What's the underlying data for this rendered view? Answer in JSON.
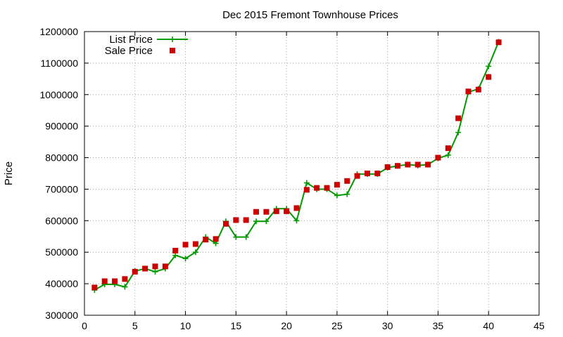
{
  "chart_data": {
    "type": "line",
    "title": "Dec 2015 Fremont Townhouse Prices",
    "xlabel": "",
    "ylabel": "Price",
    "xlim": [
      0,
      45
    ],
    "ylim": [
      300000,
      1200000
    ],
    "xticks": [
      0,
      5,
      10,
      15,
      20,
      25,
      30,
      35,
      40,
      45
    ],
    "yticks": [
      300000,
      400000,
      500000,
      600000,
      700000,
      800000,
      900000,
      1000000,
      1100000,
      1200000
    ],
    "grid": true,
    "legend_position": "top-left",
    "series": [
      {
        "name": "List Price",
        "style": "line-plus",
        "color": "#009900",
        "x": [
          1,
          2,
          3,
          4,
          5,
          6,
          7,
          8,
          9,
          10,
          11,
          12,
          13,
          14,
          15,
          16,
          17,
          18,
          19,
          20,
          21,
          22,
          23,
          24,
          25,
          26,
          27,
          28,
          29,
          30,
          31,
          32,
          33,
          34,
          35,
          36,
          37,
          38,
          39,
          40,
          41
        ],
        "y": [
          380000,
          398000,
          398000,
          390000,
          440000,
          448000,
          438000,
          448000,
          490000,
          480000,
          500000,
          548000,
          528000,
          598000,
          548000,
          548000,
          598000,
          598000,
          638000,
          638000,
          600000,
          720000,
          700000,
          700000,
          680000,
          684000,
          748000,
          748000,
          748000,
          768000,
          774000,
          778000,
          775000,
          778000,
          798000,
          808000,
          880000,
          1008000,
          1018000,
          1090000,
          1168000
        ]
      },
      {
        "name": "Sale Price",
        "style": "square-points",
        "color": "#cc0000",
        "x": [
          1,
          2,
          3,
          4,
          5,
          6,
          7,
          8,
          9,
          10,
          11,
          12,
          13,
          14,
          15,
          16,
          17,
          18,
          19,
          20,
          21,
          22,
          23,
          24,
          25,
          26,
          27,
          28,
          29,
          30,
          31,
          32,
          33,
          34,
          35,
          36,
          37,
          38,
          39,
          40,
          41
        ],
        "y": [
          388000,
          408000,
          408000,
          415000,
          438000,
          448000,
          455000,
          455000,
          505000,
          524000,
          526000,
          540000,
          542000,
          590000,
          602000,
          602000,
          628000,
          628000,
          630000,
          630000,
          640000,
          698000,
          704000,
          704000,
          714000,
          726000,
          742000,
          750000,
          750000,
          770000,
          774000,
          778000,
          778000,
          778000,
          800000,
          830000,
          925000,
          1010000,
          1016000,
          1056000,
          1166000
        ]
      }
    ]
  }
}
